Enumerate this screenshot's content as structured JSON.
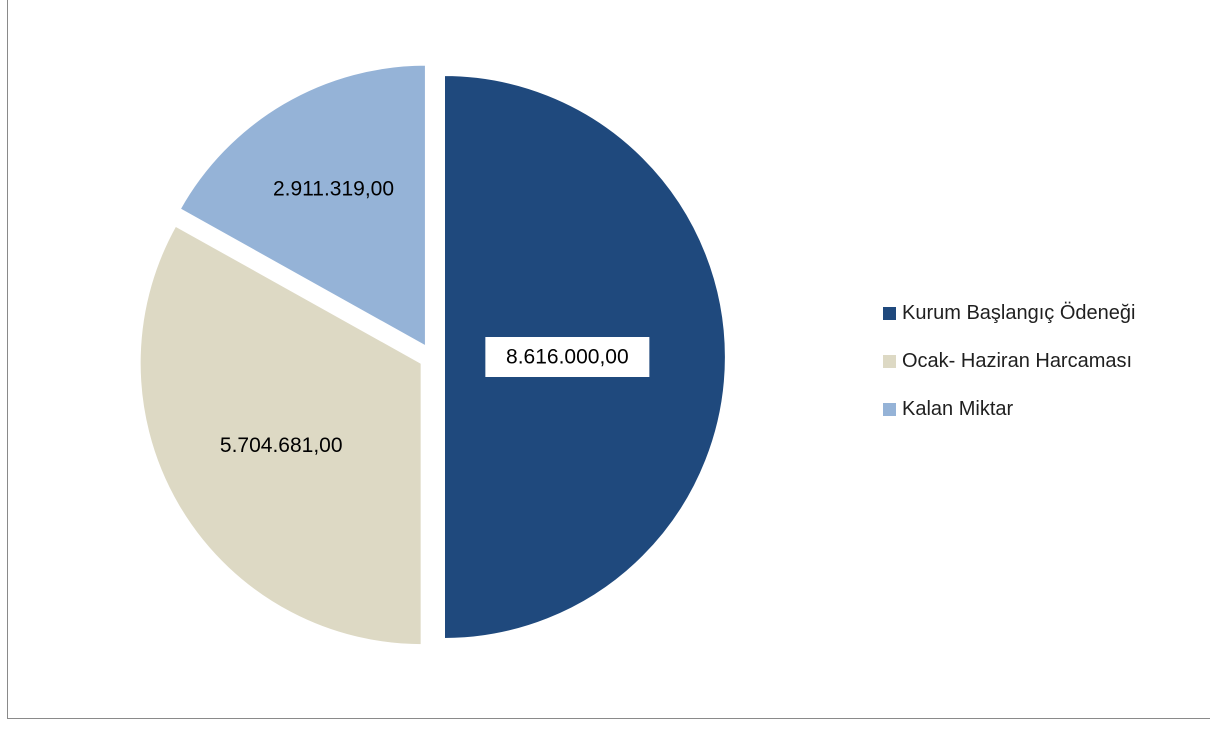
{
  "chart_data": {
    "type": "pie",
    "title": "",
    "series": [
      {
        "values": [
          8616000,
          5704681,
          2911319
        ],
        "value_labels": [
          "8.616.000,00",
          "5.704.681,00",
          "2.911.319,00"
        ]
      }
    ],
    "categories": [
      "Kurum Başlangıç Ödeneği",
      "Ocak- Haziran Harcaması",
      "Kalan Miktar"
    ],
    "colors": [
      "#1f497d",
      "#ddd9c4",
      "#95b3d7"
    ],
    "legend_position": "right",
    "exploded": true,
    "start_angle": "12 o'clock, clockwise"
  }
}
